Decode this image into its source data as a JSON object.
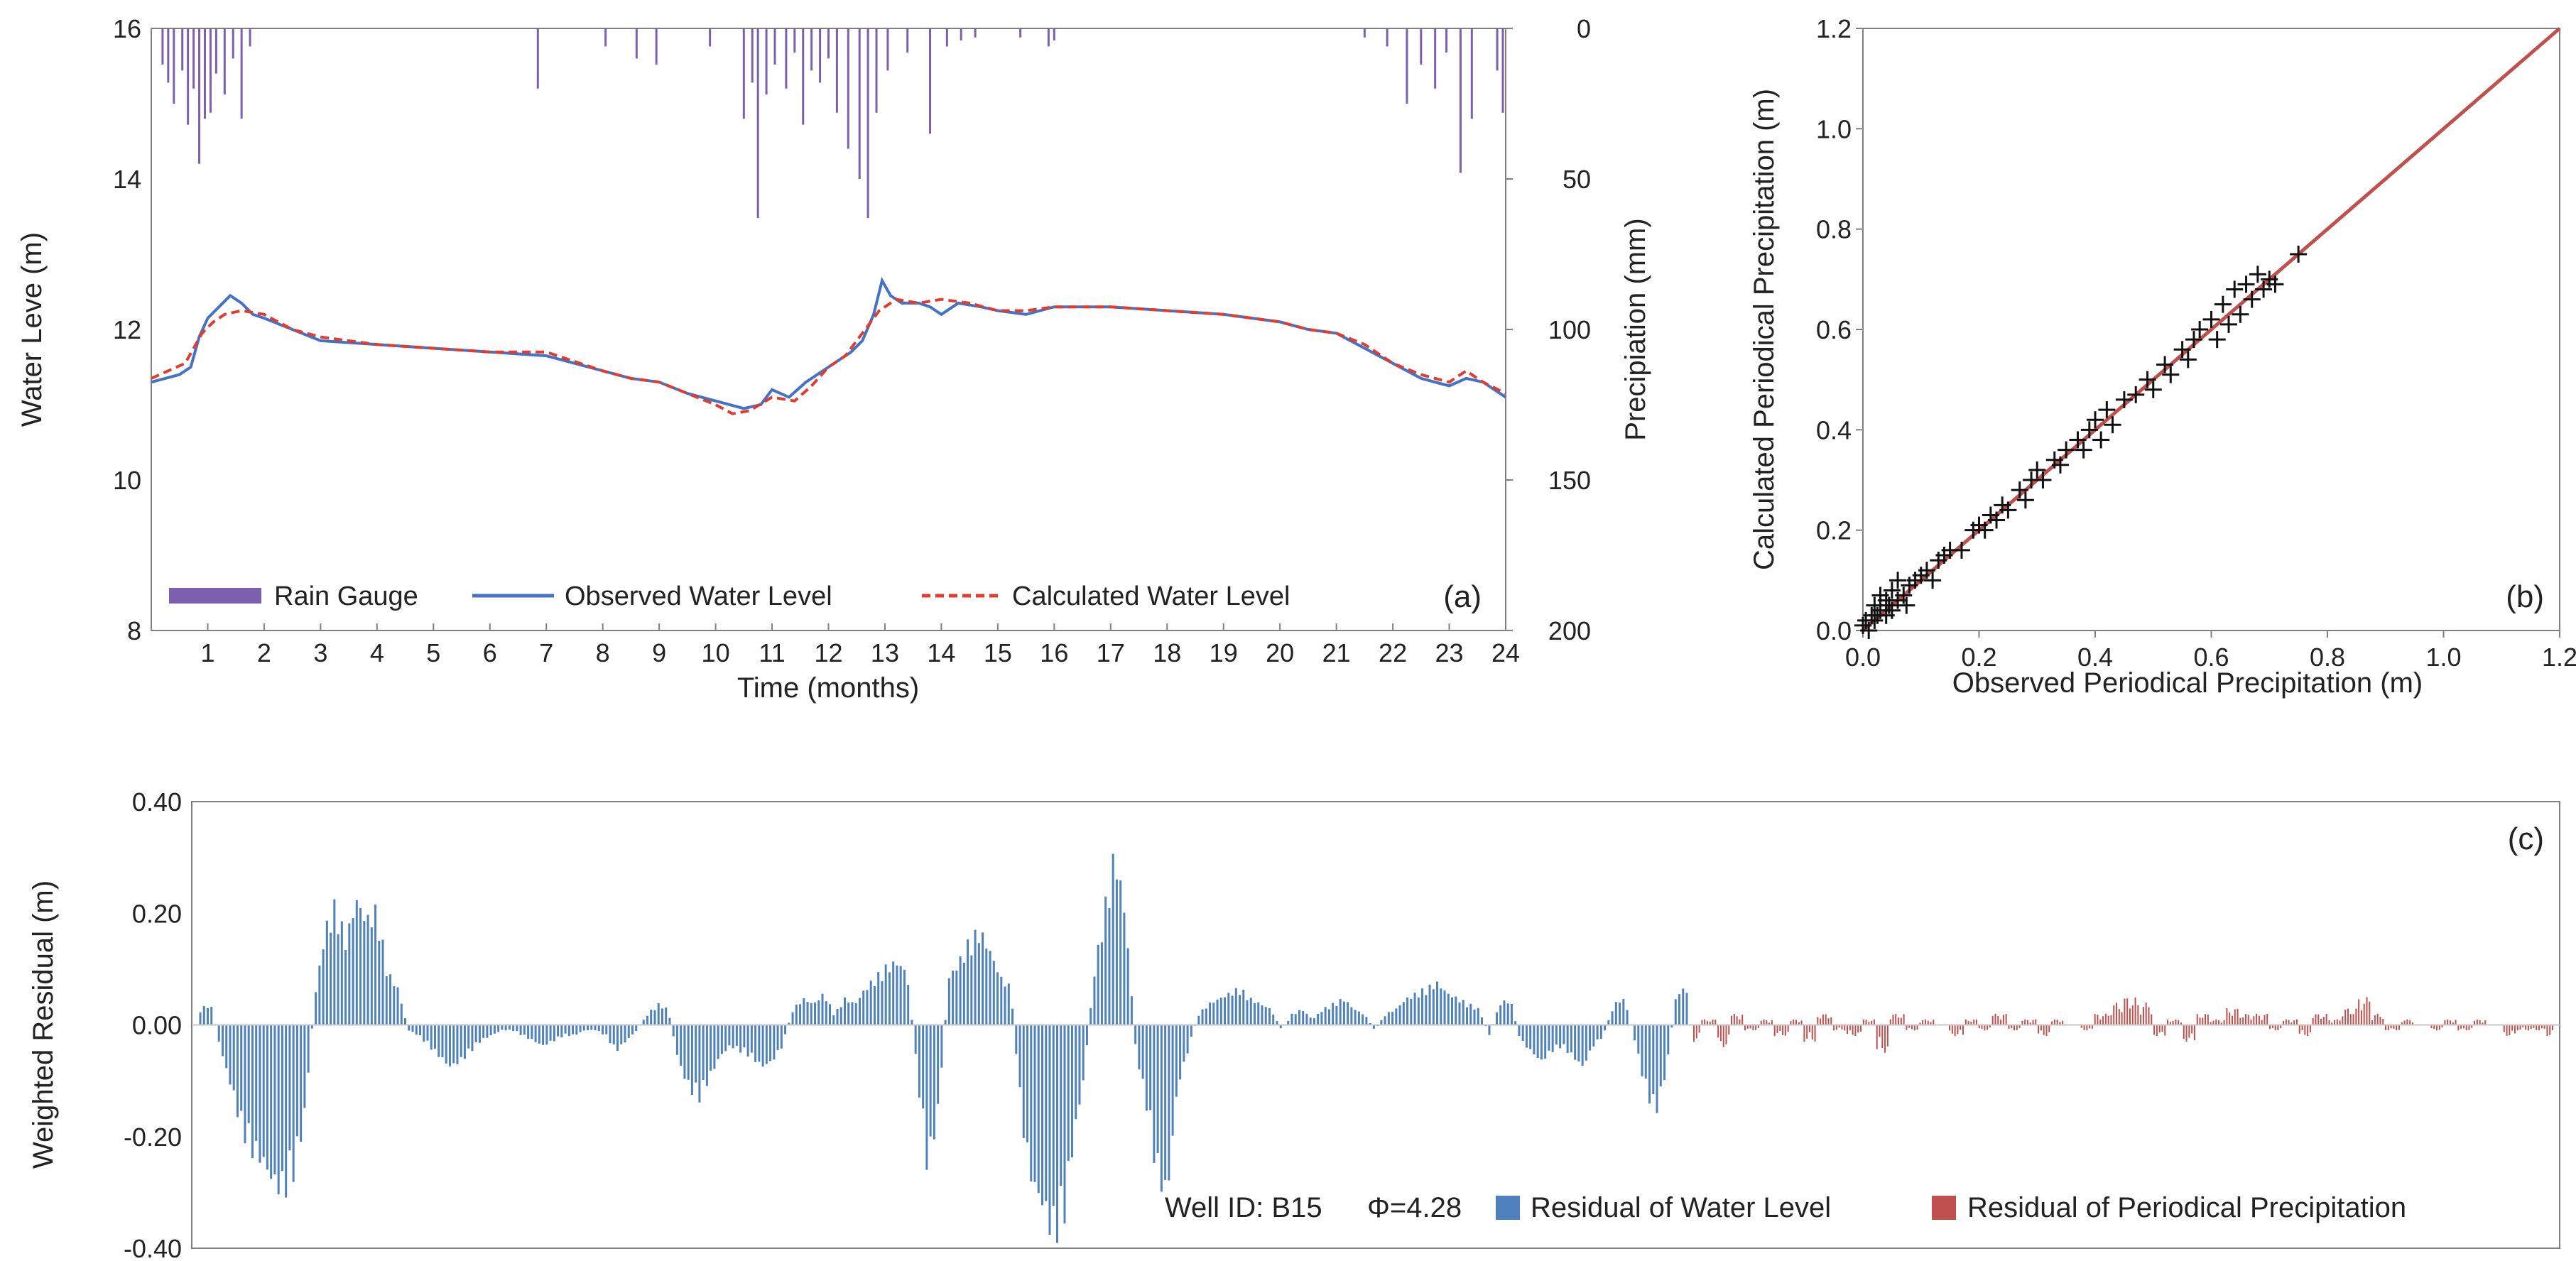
{
  "colors": {
    "rain": "#7d60ad",
    "observed": "#4472c4",
    "calculated": "#e03c31",
    "residual_wl": "#4f81bd",
    "residual_pp": "#c0504d",
    "fit_line": "#c0504d",
    "axis": "#808080",
    "text": "#222222"
  },
  "chart_data": [
    {
      "id": "a",
      "type": "line",
      "panel_label": "(a)",
      "xlabel": "Time (months)",
      "ylabel": "Water Leve (m)",
      "y2label": "Precipiation (mm)",
      "xlim": [
        0,
        24
      ],
      "ylim": [
        8,
        16
      ],
      "y2lim": [
        0,
        200
      ],
      "y2_inverted": true,
      "x_ticks": [
        "1",
        "2",
        "3",
        "4",
        "5",
        "6",
        "7",
        "8",
        "9",
        "10",
        "11",
        "12",
        "13",
        "14",
        "15",
        "16",
        "17",
        "18",
        "19",
        "20",
        "21",
        "22",
        "23",
        "24"
      ],
      "y_ticks": [
        "8",
        "10",
        "12",
        "14",
        "16"
      ],
      "y2_ticks": [
        "0",
        "50",
        "100",
        "150",
        "200"
      ],
      "legend": [
        "Rain Gauge",
        "Observed Water Level",
        "Calculated Water Level"
      ],
      "series": [
        {
          "name": "Observed Water Level",
          "x": [
            0,
            0.5,
            0.7,
            0.85,
            1.0,
            1.2,
            1.4,
            1.6,
            1.8,
            2.0,
            2.5,
            3.0,
            4.0,
            5.0,
            6.0,
            7.0,
            8.0,
            8.5,
            9.0,
            9.5,
            10.0,
            10.5,
            10.8,
            11.0,
            11.3,
            11.6,
            12.0,
            12.4,
            12.6,
            12.8,
            12.95,
            13.1,
            13.3,
            13.6,
            13.8,
            14.0,
            14.3,
            14.7,
            15.0,
            15.5,
            16.0,
            16.5,
            17.0,
            18.0,
            19.0,
            20.0,
            20.5,
            21.0,
            21.5,
            22.0,
            22.5,
            23.0,
            23.3,
            23.6,
            24.0
          ],
          "values": [
            11.3,
            11.4,
            11.5,
            11.9,
            12.15,
            12.3,
            12.45,
            12.35,
            12.2,
            12.15,
            12.0,
            11.85,
            11.8,
            11.75,
            11.7,
            11.65,
            11.45,
            11.35,
            11.3,
            11.15,
            11.05,
            10.95,
            11.0,
            11.2,
            11.1,
            11.3,
            11.5,
            11.7,
            11.85,
            12.2,
            12.65,
            12.45,
            12.35,
            12.35,
            12.3,
            12.2,
            12.35,
            12.3,
            12.25,
            12.2,
            12.3,
            12.3,
            12.3,
            12.25,
            12.2,
            12.1,
            12.0,
            11.95,
            11.75,
            11.55,
            11.35,
            11.25,
            11.35,
            11.3,
            11.1
          ]
        },
        {
          "name": "Calculated Water Level",
          "x": [
            0,
            0.3,
            0.6,
            0.9,
            1.1,
            1.3,
            1.6,
            2.0,
            2.5,
            3.0,
            4.0,
            5.0,
            6.0,
            7.0,
            8.0,
            8.5,
            9.0,
            9.5,
            10.0,
            10.3,
            10.6,
            11.0,
            11.4,
            11.7,
            12.0,
            12.3,
            12.6,
            12.9,
            13.2,
            13.6,
            14.0,
            14.5,
            15.0,
            15.5,
            16.0,
            17.0,
            18.0,
            19.0,
            20.0,
            20.5,
            21.0,
            21.5,
            22.0,
            22.5,
            23.0,
            23.3,
            23.6,
            24.0
          ],
          "values": [
            11.35,
            11.45,
            11.55,
            11.95,
            12.1,
            12.2,
            12.25,
            12.2,
            12.0,
            11.9,
            11.8,
            11.75,
            11.7,
            11.7,
            11.45,
            11.35,
            11.3,
            11.15,
            11.0,
            10.88,
            10.92,
            11.1,
            11.05,
            11.25,
            11.5,
            11.65,
            11.95,
            12.25,
            12.4,
            12.35,
            12.4,
            12.35,
            12.25,
            12.25,
            12.3,
            12.3,
            12.25,
            12.2,
            12.1,
            12.0,
            11.95,
            11.8,
            11.55,
            11.4,
            11.3,
            11.45,
            11.3,
            11.15
          ]
        },
        {
          "name": "Rain Gauge",
          "x": [
            0.2,
            0.3,
            0.4,
            0.55,
            0.65,
            0.75,
            0.85,
            0.95,
            1.05,
            1.15,
            1.3,
            1.45,
            1.6,
            1.75,
            6.85,
            8.05,
            8.6,
            8.95,
            9.9,
            10.5,
            10.65,
            10.75,
            10.9,
            11.05,
            11.25,
            11.4,
            11.55,
            11.7,
            11.85,
            12.0,
            12.15,
            12.35,
            12.55,
            12.7,
            12.85,
            13.05,
            13.4,
            13.8,
            14.1,
            14.35,
            14.6,
            15.4,
            15.9,
            16.0,
            21.5,
            21.9,
            22.25,
            22.5,
            22.75,
            22.95,
            23.2,
            23.4,
            23.85,
            23.95
          ],
          "values": [
            12,
            18,
            25,
            14,
            32,
            20,
            45,
            30,
            28,
            15,
            22,
            10,
            30,
            6,
            20,
            6,
            10,
            12,
            6,
            30,
            18,
            63,
            22,
            12,
            20,
            8,
            32,
            14,
            18,
            10,
            28,
            40,
            50,
            63,
            28,
            14,
            8,
            35,
            6,
            4,
            3,
            3,
            6,
            4,
            3,
            6,
            25,
            12,
            20,
            8,
            48,
            30,
            14,
            28
          ]
        }
      ]
    },
    {
      "id": "b",
      "type": "scatter",
      "panel_label": "(b)",
      "xlabel": "Observed  Periodical  Precipitation  (m)",
      "ylabel": "Calculated  Periodical  Precipitation  (m)",
      "xlim": [
        0,
        1.2
      ],
      "ylim": [
        0,
        1.2
      ],
      "x_ticks": [
        "0.0",
        "0.2",
        "0.4",
        "0.6",
        "0.8",
        "1.0",
        "1.2"
      ],
      "y_ticks": [
        "0.0",
        "0.2",
        "0.4",
        "0.6",
        "0.8",
        "1.0",
        "1.2"
      ],
      "fit_line": [
        [
          0,
          0
        ],
        [
          1.2,
          1.2
        ]
      ],
      "series": [
        {
          "name": "Periodical Precipitation",
          "x": [
            0.0,
            0.005,
            0.01,
            0.015,
            0.02,
            0.02,
            0.025,
            0.03,
            0.03,
            0.04,
            0.04,
            0.045,
            0.05,
            0.05,
            0.06,
            0.06,
            0.07,
            0.075,
            0.08,
            0.09,
            0.1,
            0.11,
            0.12,
            0.13,
            0.14,
            0.15,
            0.17,
            0.19,
            0.2,
            0.21,
            0.22,
            0.23,
            0.24,
            0.25,
            0.27,
            0.28,
            0.29,
            0.3,
            0.31,
            0.33,
            0.34,
            0.35,
            0.37,
            0.38,
            0.39,
            0.4,
            0.41,
            0.42,
            0.43,
            0.45,
            0.47,
            0.49,
            0.5,
            0.52,
            0.53,
            0.55,
            0.56,
            0.57,
            0.58,
            0.6,
            0.61,
            0.62,
            0.63,
            0.64,
            0.65,
            0.66,
            0.67,
            0.68,
            0.69,
            0.7,
            0.71,
            0.75
          ],
          "values": [
            0.01,
            0.02,
            0.0,
            0.03,
            0.02,
            0.05,
            0.03,
            0.04,
            0.07,
            0.03,
            0.06,
            0.05,
            0.04,
            0.08,
            0.06,
            0.1,
            0.07,
            0.05,
            0.09,
            0.1,
            0.11,
            0.12,
            0.1,
            0.14,
            0.15,
            0.16,
            0.16,
            0.2,
            0.21,
            0.2,
            0.23,
            0.22,
            0.25,
            0.24,
            0.28,
            0.26,
            0.3,
            0.32,
            0.3,
            0.34,
            0.33,
            0.36,
            0.38,
            0.36,
            0.4,
            0.42,
            0.38,
            0.44,
            0.41,
            0.46,
            0.47,
            0.5,
            0.48,
            0.53,
            0.51,
            0.56,
            0.54,
            0.58,
            0.6,
            0.62,
            0.58,
            0.65,
            0.61,
            0.68,
            0.63,
            0.69,
            0.66,
            0.71,
            0.68,
            0.7,
            0.69,
            0.75
          ]
        }
      ]
    },
    {
      "id": "c",
      "type": "bar",
      "panel_label": "(c)",
      "ylabel": "Weighted Residual (m)",
      "ylim": [
        -0.4,
        0.4
      ],
      "y_ticks": [
        "0.40",
        "0.20",
        "0.00",
        "-0.20",
        "-0.40"
      ],
      "legend": [
        "Residual of Water Level",
        "Residual of Periodical Precipitation"
      ],
      "annotations": [
        "Well ID: B15",
        "Φ=4.28"
      ],
      "series": [
        {
          "name": "Residual of Water Level",
          "values": [
            0.03,
            0.04,
            -0.05,
            -0.12,
            -0.2,
            -0.24,
            -0.26,
            -0.3,
            -0.32,
            -0.28,
            -0.18,
            0.05,
            0.18,
            0.23,
            0.16,
            0.24,
            0.2,
            0.22,
            0.1,
            0.07,
            -0.01,
            -0.02,
            -0.04,
            -0.06,
            -0.08,
            -0.07,
            -0.05,
            -0.03,
            -0.02,
            -0.01,
            -0.01,
            -0.02,
            -0.03,
            -0.04,
            -0.03,
            -0.02,
            -0.02,
            -0.01,
            -0.01,
            -0.02,
            -0.05,
            -0.03,
            -0.01,
            0.02,
            0.04,
            0.03,
            -0.07,
            -0.12,
            -0.14,
            -0.1,
            -0.06,
            -0.04,
            -0.05,
            -0.06,
            -0.08,
            -0.07,
            -0.04,
            0.03,
            0.05,
            0.04,
            0.06,
            0.02,
            0.05,
            0.04,
            0.07,
            0.09,
            0.11,
            0.12,
            0.1,
            -0.1,
            -0.28,
            -0.16,
            0.09,
            0.12,
            0.16,
            0.18,
            0.14,
            0.09,
            0.07,
            -0.18,
            -0.3,
            -0.34,
            -0.4,
            -0.38,
            -0.22,
            -0.1,
            0.1,
            0.22,
            0.33,
            0.21,
            -0.05,
            -0.15,
            -0.28,
            -0.33,
            -0.12,
            -0.05,
            0.02,
            0.04,
            0.05,
            0.06,
            0.07,
            0.05,
            0.04,
            0.03,
            -0.01,
            0.02,
            0.03,
            0.01,
            0.03,
            0.04,
            0.05,
            0.03,
            0.02,
            -0.01,
            0.02,
            0.03,
            0.05,
            0.06,
            0.07,
            0.08,
            0.06,
            0.05,
            0.04,
            0.03,
            -0.02,
            0.04,
            0.05,
            -0.03,
            -0.05,
            -0.07,
            -0.05,
            -0.04,
            -0.06,
            -0.08,
            -0.04,
            -0.02,
            0.04,
            0.05,
            -0.03,
            -0.12,
            -0.17,
            -0.09,
            0.06,
            0.07
          ],
          "note": "dense series rendered with interpolated bars; x index ~ time over first half of panel"
        },
        {
          "name": "Residual of Periodical Precipitation",
          "values": [
            -0.03,
            0.01,
            -0.04,
            0.02,
            -0.01,
            0.01,
            -0.02,
            0.01,
            -0.03,
            0.02,
            -0.01,
            -0.02,
            0.01,
            -0.05,
            0.02,
            -0.01,
            0.01,
            0.0,
            -0.02,
            0.01,
            -0.01,
            0.02,
            -0.01,
            0.01,
            -0.02,
            0.01,
            0.0,
            -0.01,
            0.02,
            0.04,
            0.05,
            0.04,
            -0.02,
            0.01,
            -0.03,
            0.02,
            0.01,
            0.03,
            0.02,
            0.02,
            -0.01,
            0.01,
            -0.02,
            0.02,
            0.01,
            0.03,
            0.05,
            0.02,
            -0.01,
            0.01,
            0.0,
            -0.01,
            0.01,
            -0.01,
            0.01,
            0.0,
            -0.02,
            -0.01,
            -0.01,
            -0.02
          ]
        }
      ]
    }
  ]
}
